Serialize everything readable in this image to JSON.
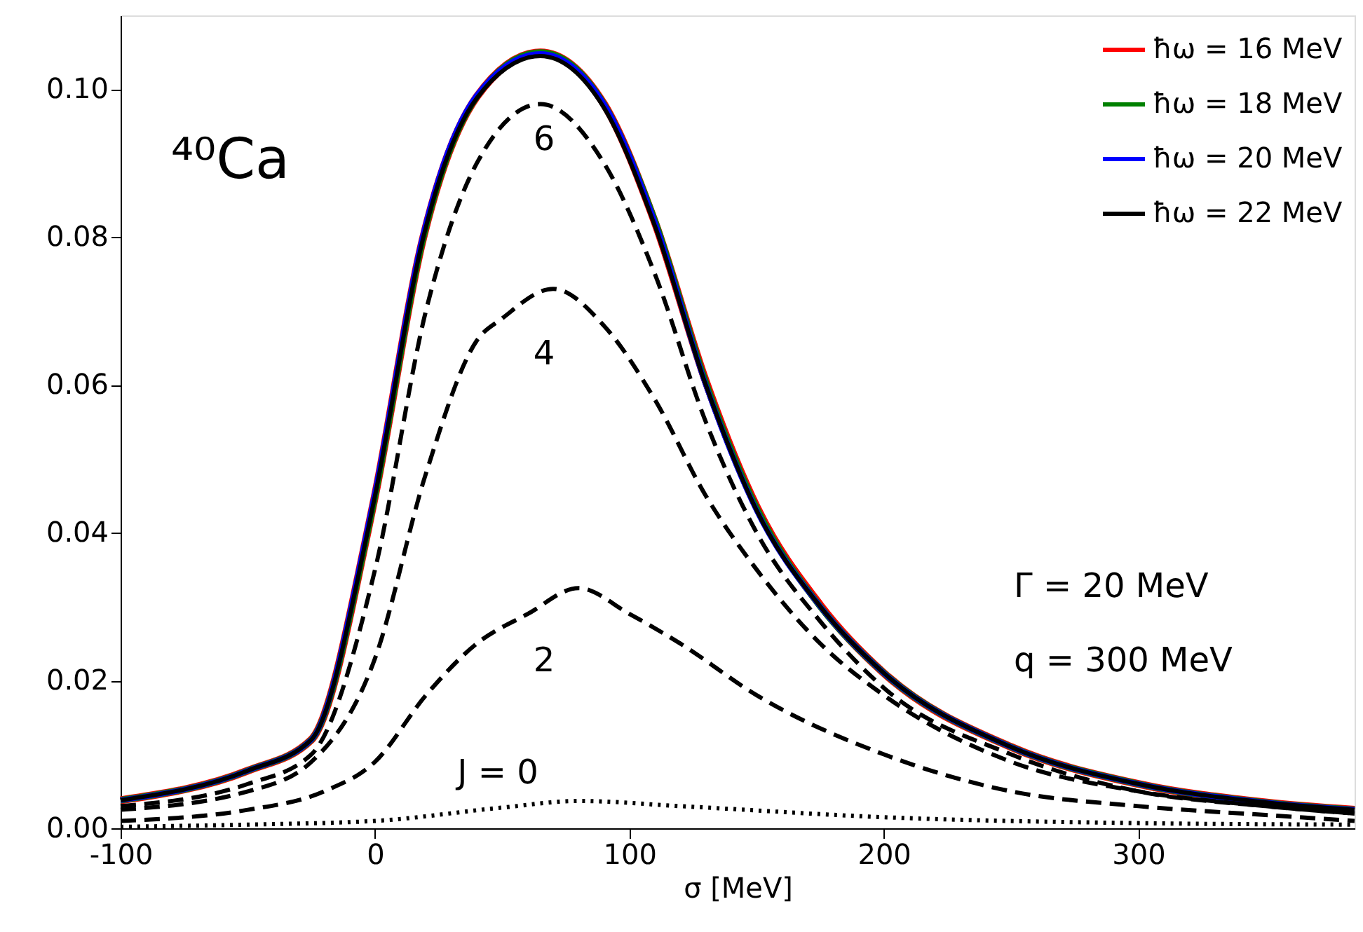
{
  "chart_data": {
    "type": "line",
    "xlabel": "σ [MeV]",
    "xlim": [
      -100,
      385
    ],
    "xticks": [
      -100,
      0,
      100,
      200,
      300
    ],
    "ylim": [
      0,
      0.11
    ],
    "yticks": [
      {
        "value": 0,
        "label": "0.00"
      },
      {
        "value": 0.02,
        "label": "0.02"
      },
      {
        "value": 0.04,
        "label": "0.04"
      },
      {
        "value": 0.06,
        "label": "0.06"
      },
      {
        "value": 0.08,
        "label": "0.08"
      },
      {
        "value": 0.1,
        "label": "0.10"
      }
    ],
    "legend": "top right",
    "grid": false,
    "marker": "none",
    "series": [
      {
        "name": "ħω = 16 MeV",
        "color": "#ff0000",
        "line_style": "solid",
        "x": [
          -100,
          -50,
          -25,
          -3,
          0,
          19,
          40,
          65,
          90,
          110,
          130,
          150,
          175,
          200,
          250,
          300,
          350,
          385
        ],
        "values": [
          0.0038,
          0.0078,
          0.012,
          0.04,
          0.045,
          0.08,
          0.099,
          0.105,
          0.098,
          0.082,
          0.0605,
          0.0435,
          0.0302,
          0.021,
          0.011,
          0.006,
          0.0035,
          0.0025
        ]
      },
      {
        "name": "ħω = 18 MeV",
        "color": "#008000",
        "line_style": "solid",
        "x": [
          -100,
          -50,
          -25,
          -3,
          0,
          19,
          40,
          65,
          90,
          110,
          130,
          150,
          175,
          200,
          250,
          300,
          350,
          385
        ],
        "values": [
          0.0038,
          0.0078,
          0.012,
          0.04,
          0.045,
          0.08,
          0.099,
          0.105,
          0.098,
          0.0822,
          0.0603,
          0.0433,
          0.03,
          0.021,
          0.011,
          0.006,
          0.0035,
          0.0025
        ]
      },
      {
        "name": "ħω = 20 MeV",
        "color": "#0000ff",
        "line_style": "solid",
        "x": [
          -100,
          -50,
          -25,
          -3,
          0,
          19,
          40,
          65,
          90,
          110,
          130,
          150,
          175,
          200,
          250,
          300,
          350,
          385
        ],
        "values": [
          0.0038,
          0.0078,
          0.012,
          0.0405,
          0.0455,
          0.0805,
          0.0992,
          0.1048,
          0.098,
          0.082,
          0.06,
          0.043,
          0.03,
          0.021,
          0.011,
          0.006,
          0.0035,
          0.0025
        ]
      },
      {
        "name": "ħω = 22 MeV",
        "color": "#000000",
        "line_style": "solid",
        "x": [
          -100,
          -50,
          -25,
          -3,
          0,
          19,
          40,
          65,
          90,
          110,
          130,
          150,
          175,
          200,
          250,
          300,
          350,
          385
        ],
        "values": [
          0.0038,
          0.0078,
          0.012,
          0.04,
          0.045,
          0.08,
          0.0988,
          0.1045,
          0.0975,
          0.0815,
          0.06,
          0.043,
          0.03,
          0.021,
          0.011,
          0.006,
          0.0035,
          0.0025
        ]
      },
      {
        "color": "#000000",
        "line_style": "dashed",
        "x": [
          -100,
          -50,
          -25,
          0,
          20,
          40,
          65,
          90,
          110,
          130,
          150,
          175,
          200,
          250,
          300,
          350,
          385
        ],
        "values": [
          0.003,
          0.006,
          0.01,
          0.035,
          0.07,
          0.09,
          0.098,
          0.09,
          0.075,
          0.055,
          0.04,
          0.028,
          0.019,
          0.01,
          0.005,
          0.003,
          0.002
        ]
      },
      {
        "color": "#000000",
        "line_style": "dashed",
        "x": [
          -100,
          -50,
          -25,
          0,
          20,
          40,
          50,
          70,
          90,
          110,
          130,
          150,
          175,
          200,
          250,
          300,
          350,
          385
        ],
        "values": [
          0.0025,
          0.005,
          0.009,
          0.023,
          0.048,
          0.066,
          0.069,
          0.073,
          0.068,
          0.058,
          0.045,
          0.035,
          0.025,
          0.018,
          0.009,
          0.005,
          0.003,
          0.002
        ]
      },
      {
        "color": "#000000",
        "line_style": "dashed",
        "x": [
          -100,
          -50,
          -20,
          0,
          20,
          40,
          60,
          80,
          100,
          120,
          150,
          200,
          250,
          300,
          350,
          385
        ],
        "values": [
          0.001,
          0.0025,
          0.005,
          0.009,
          0.018,
          0.025,
          0.029,
          0.0325,
          0.029,
          0.025,
          0.018,
          0.01,
          0.005,
          0.003,
          0.0018,
          0.001
        ]
      },
      {
        "color": "#000000",
        "line_style": "dotted",
        "x": [
          -100,
          -50,
          0,
          50,
          80,
          120,
          200,
          300,
          385
        ],
        "values": [
          0.0002,
          0.0005,
          0.001,
          0.0028,
          0.0037,
          0.003,
          0.0015,
          0.0007,
          0.0005
        ]
      }
    ],
    "annotations": [
      "⁴⁰Ca",
      "Γ = 20 MeV",
      "q = 300 MeV",
      "6",
      "4",
      "2",
      "J = 0"
    ]
  }
}
